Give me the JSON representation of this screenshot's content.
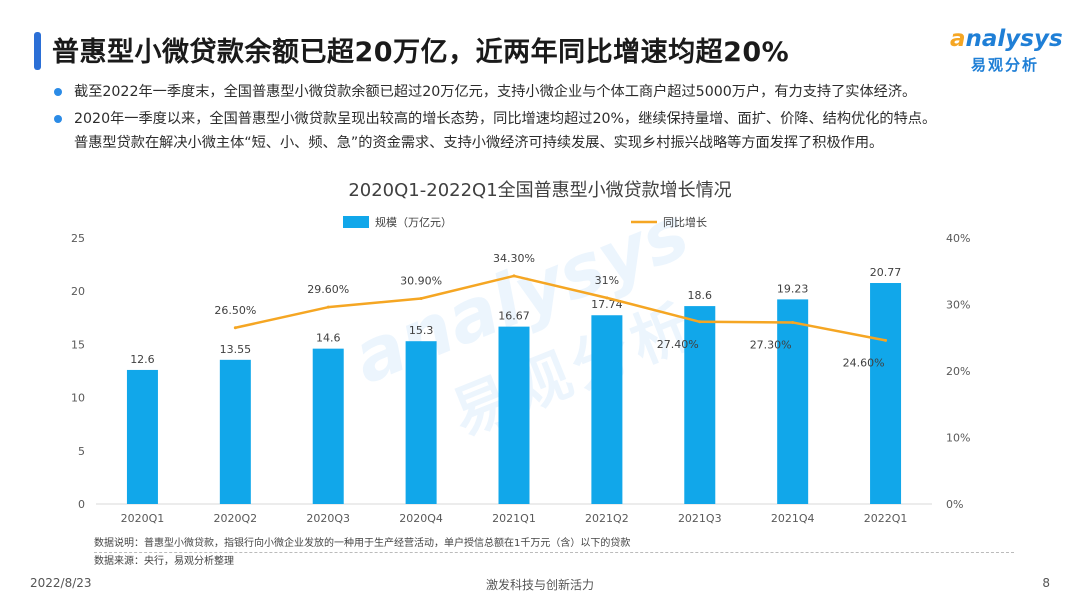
{
  "header": {
    "title": "普惠型小微贷款余额已超20万亿，近两年同比增速均超20%",
    "logo_en_lead": "a",
    "logo_en_rest": "nalysys",
    "logo_cn": "易观分析"
  },
  "bullets": [
    {
      "lines": [
        "截至2022年一季度末，全国普惠型小微贷款余额已超过20万亿元，支持小微企业与个体工商户超过5000万户，有力支持了实体经济。"
      ]
    },
    {
      "lines": [
        "2020年一季度以来，全国普惠型小微贷款呈现出较高的增长态势，同比增速均超过20%，继续保持量增、面扩、价降、结构优化的特点。",
        "普惠型贷款在解决小微主体“短、小、频、急”的资金需求、支持小微经济可持续发展、实现乡村振兴战略等方面发挥了积极作用。"
      ]
    }
  ],
  "chart_data": {
    "type": "bar+line",
    "title": "2020Q1-2022Q1全国普惠型小微贷款增长情况",
    "categories": [
      "2020Q1",
      "2020Q2",
      "2020Q3",
      "2020Q4",
      "2021Q1",
      "2021Q2",
      "2021Q3",
      "2021Q4",
      "2022Q1"
    ],
    "series": [
      {
        "name": "规模（万亿元）",
        "type": "bar",
        "axis": "left",
        "values": [
          12.6,
          13.55,
          14.6,
          15.3,
          16.67,
          17.74,
          18.6,
          19.23,
          20.77
        ],
        "labels": [
          "12.6",
          "13.55",
          "14.6",
          "15.3",
          "16.67",
          "17.74",
          "18.6",
          "19.23",
          "20.77"
        ],
        "color": "#11a7ea"
      },
      {
        "name": "同比增长",
        "type": "line",
        "axis": "right",
        "values": [
          null,
          26.5,
          29.6,
          30.9,
          34.3,
          31.0,
          27.4,
          27.3,
          24.6
        ],
        "labels": [
          null,
          "26.50%",
          "29.60%",
          "30.90%",
          "34.30%",
          "31%",
          "27.40%",
          "27.30%",
          "24.60%"
        ],
        "color": "#f5a623"
      }
    ],
    "y_left": {
      "min": 0,
      "max": 25,
      "ticks": [
        "0",
        "5",
        "10",
        "15",
        "20",
        "25"
      ]
    },
    "y_right": {
      "min": 0,
      "max": 40,
      "ticks": [
        "0%",
        "10%",
        "20%",
        "30%",
        "40%"
      ]
    },
    "legend": "top-center"
  },
  "notes": {
    "description": "数据说明：普惠型小微贷款，指银行向小微企业发放的一种用于生产经营活动，单户授信总额在1千万元（含）以下的贷款",
    "source": "数据来源：央行，易观分析整理"
  },
  "footer": {
    "date": "2022/8/23",
    "slogan": "激发科技与创新活力",
    "page": "8"
  },
  "watermark": {
    "en": "analysys",
    "cn": "易观分析"
  },
  "colors": {
    "accent": "#2b6fd6",
    "bar": "#11a7ea",
    "line": "#f5a623"
  }
}
